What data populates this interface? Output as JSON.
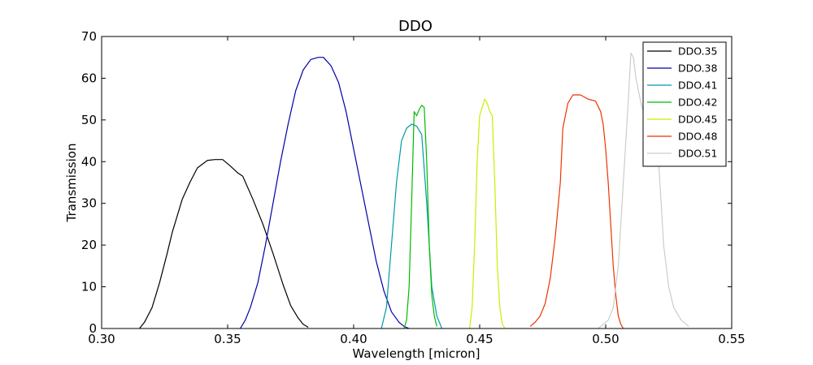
{
  "chart_data": {
    "type": "line",
    "title": "DDO",
    "xlabel": "Wavelength [micron]",
    "ylabel": "Transmission",
    "xlim": [
      0.3,
      0.55
    ],
    "ylim": [
      0,
      70
    ],
    "xticks": [
      "0.30",
      "0.35",
      "0.40",
      "0.45",
      "0.50",
      "0.55"
    ],
    "xtick_values": [
      0.3,
      0.35,
      0.4,
      0.45,
      0.5,
      0.55
    ],
    "yticks": [
      "0",
      "10",
      "20",
      "30",
      "40",
      "50",
      "60",
      "70"
    ],
    "ytick_values": [
      0,
      10,
      20,
      30,
      40,
      50,
      60,
      70
    ],
    "grid": false,
    "legend_position": "top-right",
    "series": [
      {
        "name": "DDO.35",
        "color": "#000000",
        "points": [
          [
            0.315,
            0
          ],
          [
            0.317,
            1.5
          ],
          [
            0.32,
            5
          ],
          [
            0.323,
            11
          ],
          [
            0.326,
            18
          ],
          [
            0.328,
            23
          ],
          [
            0.332,
            31
          ],
          [
            0.335,
            35
          ],
          [
            0.338,
            38.5
          ],
          [
            0.342,
            40.3
          ],
          [
            0.345,
            40.5
          ],
          [
            0.348,
            40.5
          ],
          [
            0.351,
            39
          ],
          [
            0.354,
            37.3
          ],
          [
            0.356,
            36.5
          ],
          [
            0.36,
            31
          ],
          [
            0.364,
            25
          ],
          [
            0.368,
            18
          ],
          [
            0.372,
            10.5
          ],
          [
            0.375,
            5.5
          ],
          [
            0.378,
            2.5
          ],
          [
            0.38,
            1
          ],
          [
            0.382,
            0.3
          ]
        ]
      },
      {
        "name": "DDO.38",
        "color": "#0000aa",
        "points": [
          [
            0.355,
            0
          ],
          [
            0.357,
            2
          ],
          [
            0.359,
            5
          ],
          [
            0.362,
            11
          ],
          [
            0.365,
            20
          ],
          [
            0.368,
            30
          ],
          [
            0.371,
            40
          ],
          [
            0.374,
            49
          ],
          [
            0.377,
            57
          ],
          [
            0.38,
            62
          ],
          [
            0.383,
            64.5
          ],
          [
            0.386,
            65
          ],
          [
            0.388,
            65
          ],
          [
            0.391,
            63
          ],
          [
            0.394,
            59
          ],
          [
            0.397,
            52
          ],
          [
            0.4,
            43
          ],
          [
            0.403,
            34
          ],
          [
            0.406,
            25
          ],
          [
            0.409,
            16
          ],
          [
            0.412,
            9
          ],
          [
            0.415,
            4
          ],
          [
            0.418,
            1.5
          ],
          [
            0.42,
            0.5
          ],
          [
            0.422,
            0
          ]
        ]
      },
      {
        "name": "DDO.41",
        "color": "#0099aa",
        "points": [
          [
            0.411,
            0
          ],
          [
            0.413,
            5
          ],
          [
            0.415,
            20
          ],
          [
            0.417,
            35
          ],
          [
            0.419,
            45
          ],
          [
            0.421,
            48
          ],
          [
            0.423,
            49
          ],
          [
            0.425,
            48.5
          ],
          [
            0.427,
            46.5
          ],
          [
            0.429,
            30
          ],
          [
            0.431,
            10
          ],
          [
            0.433,
            3
          ],
          [
            0.435,
            0
          ]
        ]
      },
      {
        "name": "DDO.42",
        "color": "#00bb00",
        "points": [
          [
            0.42,
            0
          ],
          [
            0.421,
            2
          ],
          [
            0.422,
            10
          ],
          [
            0.423,
            30
          ],
          [
            0.424,
            52
          ],
          [
            0.425,
            51
          ],
          [
            0.426,
            52.5
          ],
          [
            0.427,
            53.5
          ],
          [
            0.428,
            53
          ],
          [
            0.429,
            40
          ],
          [
            0.43,
            20
          ],
          [
            0.431,
            8
          ],
          [
            0.432,
            3
          ],
          [
            0.433,
            0.5
          ]
        ]
      },
      {
        "name": "DDO.45",
        "color": "#ccee00",
        "points": [
          [
            0.446,
            0
          ],
          [
            0.447,
            5
          ],
          [
            0.448,
            20
          ],
          [
            0.449,
            40
          ],
          [
            0.45,
            51
          ],
          [
            0.451,
            53
          ],
          [
            0.452,
            55
          ],
          [
            0.453,
            54
          ],
          [
            0.454,
            52
          ],
          [
            0.455,
            51
          ],
          [
            0.456,
            35
          ],
          [
            0.457,
            15
          ],
          [
            0.458,
            5
          ],
          [
            0.459,
            1
          ],
          [
            0.46,
            0
          ]
        ]
      },
      {
        "name": "DDO.48",
        "color": "#ee3300",
        "points": [
          [
            0.47,
            0.5
          ],
          [
            0.472,
            1.5
          ],
          [
            0.474,
            3
          ],
          [
            0.476,
            6
          ],
          [
            0.478,
            12
          ],
          [
            0.48,
            22
          ],
          [
            0.482,
            35
          ],
          [
            0.483,
            48
          ],
          [
            0.485,
            54
          ],
          [
            0.487,
            56
          ],
          [
            0.49,
            56
          ],
          [
            0.493,
            55
          ],
          [
            0.496,
            54.5
          ],
          [
            0.498,
            52
          ],
          [
            0.499,
            49
          ],
          [
            0.5,
            43
          ],
          [
            0.501,
            35
          ],
          [
            0.502,
            25
          ],
          [
            0.503,
            15
          ],
          [
            0.504,
            8
          ],
          [
            0.505,
            3
          ],
          [
            0.506,
            1
          ],
          [
            0.507,
            0
          ]
        ]
      },
      {
        "name": "DDO.51",
        "color": "#cccccc",
        "points": [
          [
            0.497,
            0
          ],
          [
            0.499,
            1
          ],
          [
            0.501,
            2
          ],
          [
            0.503,
            5
          ],
          [
            0.505,
            15
          ],
          [
            0.507,
            35
          ],
          [
            0.509,
            55
          ],
          [
            0.51,
            66
          ],
          [
            0.511,
            65
          ],
          [
            0.512,
            60
          ],
          [
            0.514,
            54
          ],
          [
            0.515,
            52
          ],
          [
            0.517,
            56
          ],
          [
            0.519,
            60
          ],
          [
            0.52,
            55
          ],
          [
            0.521,
            40
          ],
          [
            0.523,
            20
          ],
          [
            0.525,
            10
          ],
          [
            0.527,
            5
          ],
          [
            0.53,
            2
          ],
          [
            0.533,
            0.5
          ]
        ]
      }
    ]
  }
}
